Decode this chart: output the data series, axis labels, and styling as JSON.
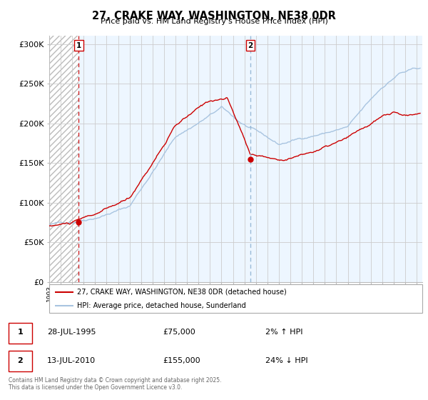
{
  "title": "27, CRAKE WAY, WASHINGTON, NE38 0DR",
  "subtitle": "Price paid vs. HM Land Registry's House Price Index (HPI)",
  "hpi_color": "#a8c4e0",
  "price_color": "#cc0000",
  "marker_color": "#cc0000",
  "vline1_color": "#cc0000",
  "vline2_color": "#8ab0d0",
  "hatch_color": "#cccccc",
  "shading_color": "#ddeeff",
  "bg_color": "#ffffff",
  "plot_bg": "#ffffff",
  "grid_color": "#cccccc",
  "ylim": [
    0,
    310000
  ],
  "yticks": [
    0,
    50000,
    100000,
    150000,
    200000,
    250000,
    300000
  ],
  "sale1_year": 1995.57,
  "sale1_price": 75000,
  "sale1_label": "1",
  "sale1_date": "28-JUL-1995",
  "sale1_pct": "2% ↑ HPI",
  "sale2_year": 2010.53,
  "sale2_price": 155000,
  "sale2_label": "2",
  "sale2_date": "13-JUL-2010",
  "sale2_pct": "24% ↓ HPI",
  "legend_line1": "27, CRAKE WAY, WASHINGTON, NE38 0DR (detached house)",
  "legend_line2": "HPI: Average price, detached house, Sunderland",
  "footnote": "Contains HM Land Registry data © Crown copyright and database right 2025.\nThis data is licensed under the Open Government Licence v3.0.",
  "xmin": 1993,
  "xmax": 2025.5
}
